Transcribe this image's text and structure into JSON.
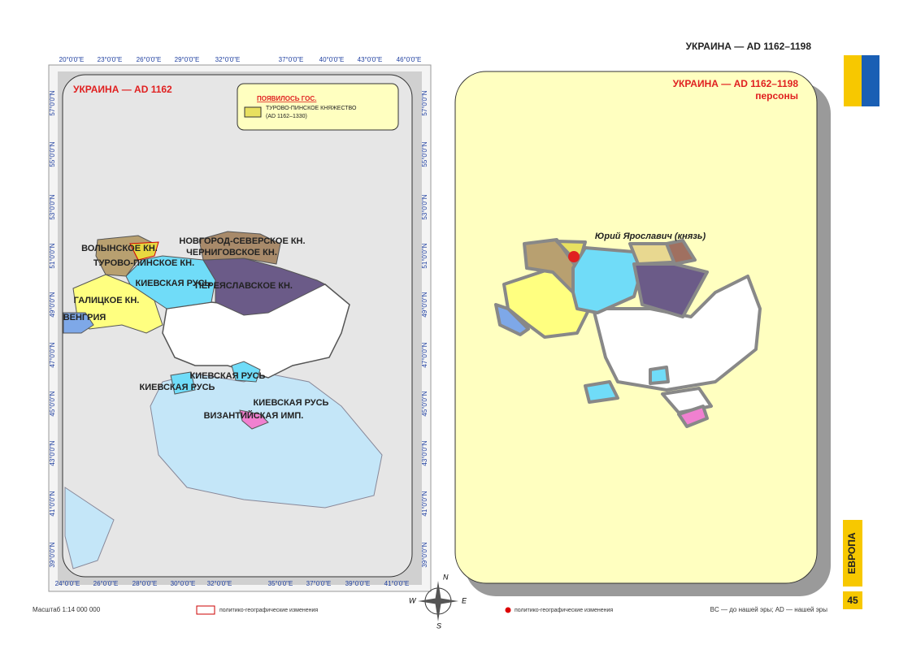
{
  "header": {
    "title": "УКРАИНА — AD 1162–1198"
  },
  "left_map": {
    "title": "УКРАИНА — AD 1162",
    "legend": {
      "heading": "ПОЯВИЛОСЬ ГОС.",
      "state": "ТУРОВО-ПИНСКОЕ КНЯЖЕСТВО",
      "period": "(AD 1162–1330)"
    },
    "top_ticks": [
      "20°0'0\"E",
      "23°0'0\"E",
      "26°0'0\"E",
      "29°0'0\"E",
      "32°0'0\"E",
      "37°0'0\"E",
      "40°0'0\"E",
      "43°0'0\"E",
      "46°0'0\"E"
    ],
    "bottom_ticks": [
      "24°0'0\"E",
      "26°0'0\"E",
      "28°0'0\"E",
      "30°0'0\"E",
      "32°0'0\"E",
      "35°0'0\"E",
      "37°0'0\"E",
      "39°0'0\"E",
      "41°0'0\"E"
    ],
    "left_ticks": [
      "57°0'0\"N",
      "55°0'0\"N",
      "53°0'0\"N",
      "51°0'0\"N",
      "49°0'0\"N",
      "47°0'0\"N",
      "45°0'0\"N",
      "43°0'0\"N",
      "41°0'0\"N",
      "39°0'0\"N"
    ],
    "right_ticks": [
      "57°0'0\"N",
      "55°0'0\"N",
      "53°0'0\"N",
      "51°0'0\"N",
      "49°0'0\"N",
      "47°0'0\"N",
      "45°0'0\"N",
      "43°0'0\"N",
      "41°0'0\"N",
      "39°0'0\"N"
    ],
    "regions": [
      "ВОЛЫНСКОЕ КН.",
      "НОВГОРОД-СЕВЕРСКОЕ КН.",
      "ЧЕРНИГОВСКОЕ КН.",
      "ТУРОВО-ПИНСКОЕ КН.",
      "КИЕВСКАЯ РУСЬ",
      "ПЕРЕЯСЛАВСКОЕ КН.",
      "ГАЛИЦКОЕ КН.",
      "ВЕНГРИЯ",
      "КИЕВСКАЯ РУСЬ",
      "КИЕВСКАЯ РУСЬ",
      "КИЕВСКАЯ РУСЬ",
      "ВИЗАНТИЙСКАЯ ИМП."
    ]
  },
  "right_map": {
    "title": "УКРАИНА — AD 1162–1198",
    "subtitle": "персоны",
    "person": "Юрий Ярославич (князь)"
  },
  "side": {
    "section": "ЕВРОПА",
    "page": "45"
  },
  "compass": {
    "n": "N",
    "e": "E",
    "s": "S",
    "w": "W"
  },
  "footer": {
    "scale": "Масштаб 1:14 000 000",
    "legend_changes": "политико-географические изменения",
    "legend_persons": "политико-географические изменения",
    "era_note": "BC — до нашей эры; AD — нашей эры"
  }
}
